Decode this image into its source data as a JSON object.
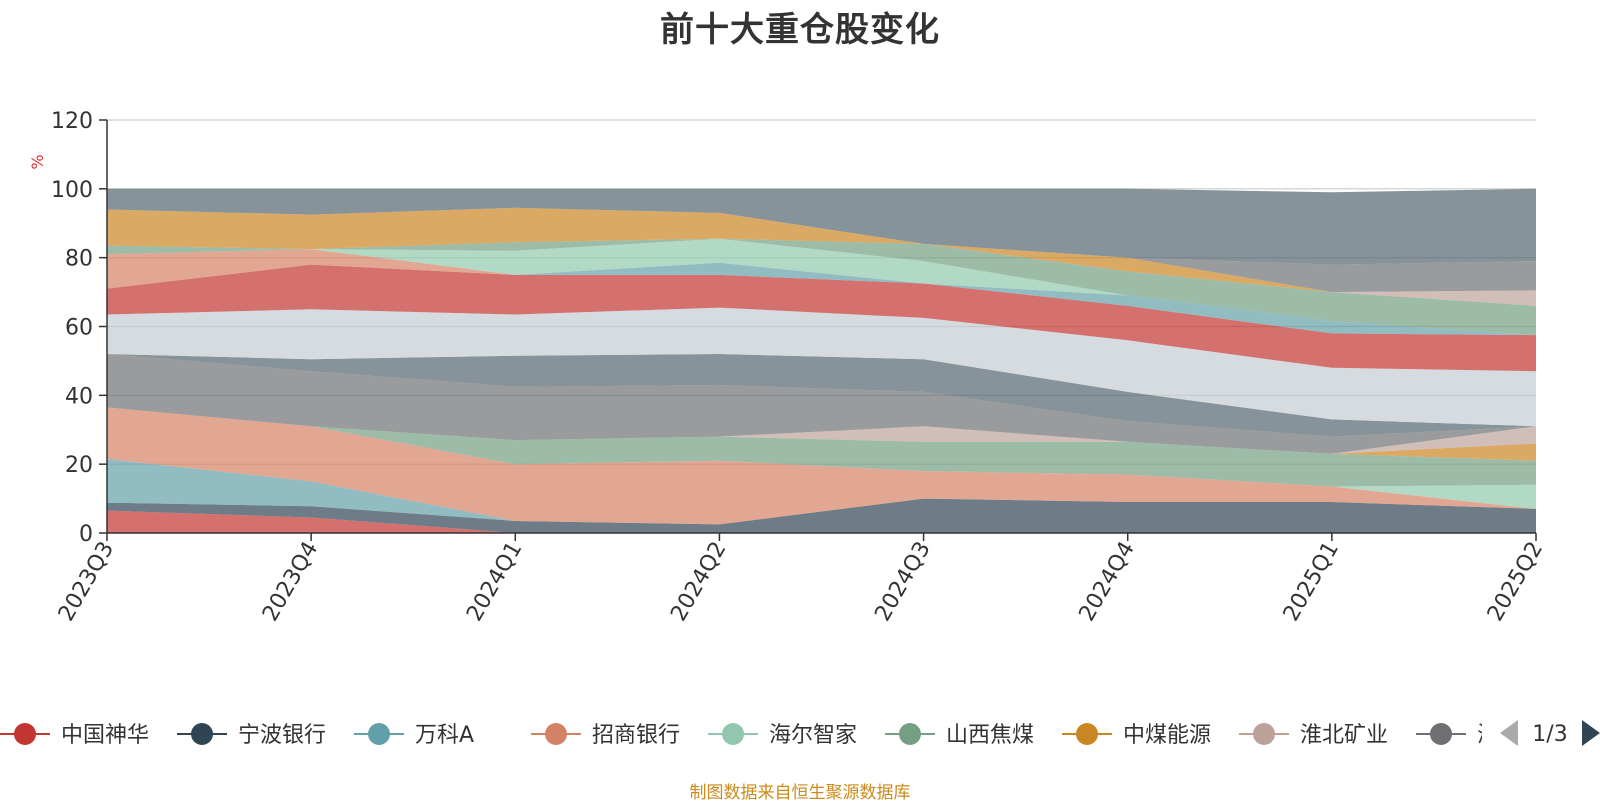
{
  "title": "前十大重仓股变化",
  "source_note": "制图数据来自恒生聚源数据库",
  "legend_page": "1/3",
  "chart_data": {
    "type": "area",
    "stacked": true,
    "title": "前十大重仓股变化",
    "ylabel": "%",
    "xlabel": "",
    "ylim": [
      0,
      120
    ],
    "yticks": [
      0,
      20,
      40,
      60,
      80,
      100,
      120
    ],
    "categories": [
      "2023Q3",
      "2023Q4",
      "2024Q1",
      "2024Q2",
      "2024Q3",
      "2024Q4",
      "2025Q1",
      "2025Q2"
    ],
    "legend_placement": "bottom",
    "grid": true,
    "series": [
      {
        "name": "中国神华",
        "color": "#c23531",
        "values": [
          6.5,
          4.5,
          0,
          0,
          0,
          0,
          0,
          0
        ]
      },
      {
        "name": "宁波银行",
        "color": "#2f4554",
        "values": [
          2.3,
          3.3,
          3.5,
          2.5,
          10,
          9,
          9,
          7
        ]
      },
      {
        "name": "万科A",
        "color": "#61a0a8",
        "values": [
          12.7,
          7.2,
          0,
          0,
          0,
          0,
          0,
          0
        ]
      },
      {
        "name": "招商银行",
        "color": "#d48265",
        "values": [
          15,
          16,
          16.5,
          18.5,
          8,
          8,
          4.5,
          0
        ]
      },
      {
        "name": "海尔智家",
        "color": "#91c7ae",
        "values": [
          0,
          0,
          0,
          0,
          0,
          0,
          0,
          7
        ]
      },
      {
        "name": "山西焦煤",
        "color": "#749f83",
        "values": [
          0,
          0,
          7,
          7,
          8.5,
          9.5,
          9.5,
          7
        ]
      },
      {
        "name": "中煤能源",
        "color": "#ca8622",
        "values": [
          0,
          0,
          0,
          0,
          0,
          0,
          0,
          5
        ]
      },
      {
        "name": "淮北矿业",
        "color": "#bda29a",
        "values": [
          0,
          0,
          0,
          0,
          4.5,
          0,
          0,
          5
        ]
      },
      {
        "name": "海螺水泥",
        "color": "#6e7074",
        "values": [
          15.5,
          16,
          15.5,
          15,
          10,
          6,
          5,
          0
        ]
      },
      {
        "name": "",
        "color": "#546570",
        "values": [
          0,
          3.5,
          9,
          9,
          9.5,
          8.5,
          5,
          0
        ]
      },
      {
        "name": "",
        "color": "#c4ccd3",
        "values": [
          11.5,
          14.5,
          12,
          13.5,
          12,
          15,
          15,
          16
        ]
      },
      {
        "name": "",
        "color": "#c23531",
        "values": [
          7.5,
          13,
          11.5,
          9.5,
          10,
          10,
          10,
          10.5
        ]
      },
      {
        "name": "",
        "color": "#d48265",
        "values": [
          10,
          4.5,
          0,
          0,
          0,
          0,
          0,
          0
        ]
      },
      {
        "name": "",
        "color": "#61a0a8",
        "values": [
          0,
          0,
          0,
          3.5,
          0,
          3,
          3.5,
          0
        ]
      },
      {
        "name": "",
        "color": "#91c7ae",
        "values": [
          0,
          0,
          7,
          7,
          6.5,
          0,
          0,
          0
        ]
      },
      {
        "name": "",
        "color": "#749f83",
        "values": [
          2.5,
          0,
          2.5,
          0,
          5,
          7,
          8.5,
          8.5
        ]
      },
      {
        "name": "",
        "color": "#bda29a",
        "values": [
          0,
          0,
          0,
          0,
          0,
          0,
          0,
          4.5
        ]
      },
      {
        "name": "",
        "color": "#ca8622",
        "values": [
          10.5,
          10,
          10,
          7.5,
          0,
          4,
          0,
          0
        ]
      },
      {
        "name": "",
        "color": "#6e7074",
        "values": [
          0,
          0,
          0,
          0,
          0,
          0,
          8,
          8.5
        ]
      },
      {
        "name": "",
        "color": "#546570",
        "values": [
          6.0,
          7.5,
          5.5,
          7.0,
          16.0,
          20.0,
          21.0,
          21.0
        ]
      }
    ]
  }
}
